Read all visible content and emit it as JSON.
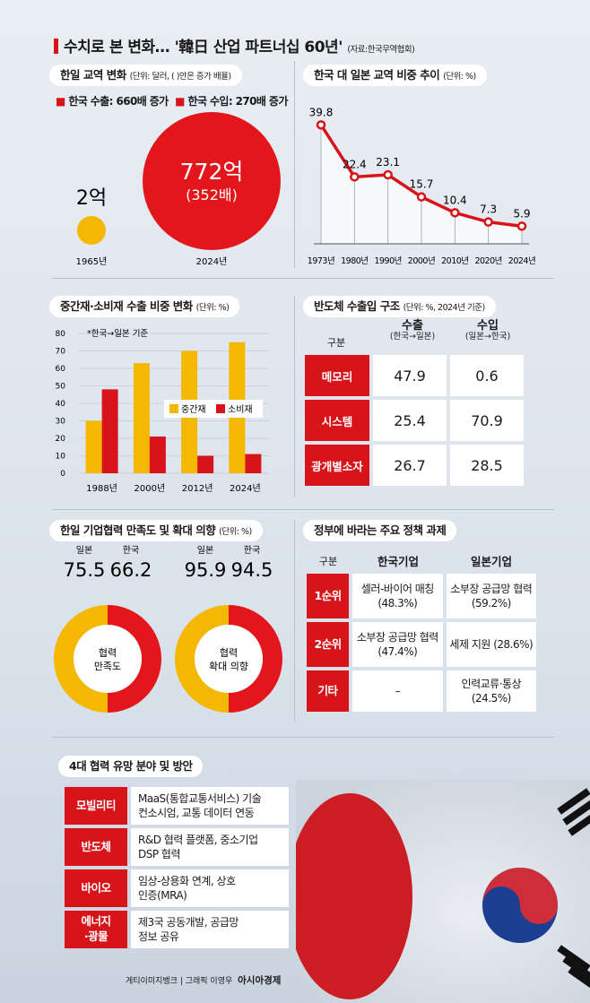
{
  "header": {
    "title": "수치로 본 변화… '韓日 산업 파트너십 60년'",
    "source": "(자료:한국무역협회)"
  },
  "trade": {
    "title": "한일 교역 변화",
    "unit": "(단위: 달러, ( )안은 증가 배율)",
    "legend_export": "한국 수출: 660배 증가",
    "legend_import": "한국 수입: 270배 증가",
    "small_value": "2억",
    "small_year": "1965년",
    "big_value": "772억",
    "big_ratio": "(352배)",
    "big_year": "2024년",
    "colors": {
      "yellow": "#f5b800",
      "red": "#e3171b"
    }
  },
  "chart_data": [
    {
      "type": "line",
      "title": "한국 대 일본 교역 비중 추이",
      "unit": "(단위: %)",
      "categories": [
        "1973년",
        "1980년",
        "1990년",
        "2000년",
        "2010년",
        "2020년",
        "2024년"
      ],
      "values": [
        39.8,
        22.4,
        23.1,
        15.7,
        10.4,
        7.3,
        5.9
      ],
      "ylim": [
        0,
        45
      ]
    },
    {
      "type": "bar",
      "title": "중간재·소비재 수출 비중 변화",
      "unit": "(단위: %)",
      "note": "*한국→일본 기준",
      "categories": [
        "1988년",
        "2000년",
        "2012년",
        "2024년"
      ],
      "series": [
        {
          "name": "중간재",
          "values": [
            30,
            63,
            70,
            75
          ],
          "color": "#f5b800"
        },
        {
          "name": "소비재",
          "values": [
            48,
            21,
            10,
            11
          ],
          "color": "#d7141a"
        }
      ],
      "yticks": [
        "0",
        "10",
        "20",
        "30",
        "40",
        "50",
        "60",
        "70",
        "80"
      ],
      "ylim": [
        0,
        80
      ]
    },
    {
      "type": "pie",
      "title": "한일 기업협력 만족도 및 확대 의향",
      "unit": "(단위: %)",
      "donuts": [
        {
          "label_line1": "협력",
          "label_line2": "만족도",
          "values": [
            {
              "name": "일본",
              "value": "75.5"
            },
            {
              "name": "한국",
              "value": "66.2"
            }
          ]
        },
        {
          "label_line1": "협력",
          "label_line2": "확대 의향",
          "values": [
            {
              "name": "일본",
              "value": "95.9"
            },
            {
              "name": "한국",
              "value": "94.5"
            }
          ]
        }
      ]
    }
  ],
  "semiconductor": {
    "title": "반도체 수출입 구조",
    "unit": "(단위: %, 2024년 기준)",
    "col_header": "구분",
    "export_label": "수출",
    "export_sub": "(한국→일본)",
    "import_label": "수입",
    "import_sub": "(일본→한국)",
    "rows": [
      {
        "name": "메모리",
        "export": "47.9",
        "import": "0.6"
      },
      {
        "name": "시스템",
        "export": "25.4",
        "import": "70.9"
      },
      {
        "name": "광개별소자",
        "export": "26.7",
        "import": "28.5"
      }
    ]
  },
  "policy": {
    "title": "정부에 바라는 주요 정책 과제",
    "col_header": "구분",
    "korea_label": "한국기업",
    "japan_label": "일본기업",
    "rows": [
      {
        "rank": "1순위",
        "korea": "셀러-바이어 매칭(48.3%)",
        "japan": "소부장 공급망 협력(59.2%)"
      },
      {
        "rank": "2순위",
        "korea": "소부장 공급망 협력(47.4%)",
        "japan": "세제 지원 (28.6%)"
      },
      {
        "rank": "기타",
        "korea": "–",
        "japan": "인력교류·통상 (24.5%)"
      }
    ]
  },
  "cooperation": {
    "title": "4대 협력 유망 분야 및 방안",
    "rows": [
      {
        "field_line1": "모빌리티",
        "field_line2": "",
        "line1": "MaaS(통합교통서비스) 기술",
        "line2": "컨소시엄, 교통 데이터 연동"
      },
      {
        "field_line1": "반도체",
        "field_line2": "",
        "line1": "R&D 협력 플랫폼, 중소기업",
        "line2": "DSP 협력"
      },
      {
        "field_line1": "바이오",
        "field_line2": "",
        "line1": "임상-상용화 연계, 상호",
        "line2": "인증(MRA)"
      },
      {
        "field_line1": "에너지",
        "field_line2": "·광물",
        "line1": "제3국 공동개발, 공급망",
        "line2": "정보 공유"
      }
    ]
  },
  "credit": {
    "text": "게티이미지뱅크 | 그래픽 이영우",
    "brand": "아시아경제"
  }
}
